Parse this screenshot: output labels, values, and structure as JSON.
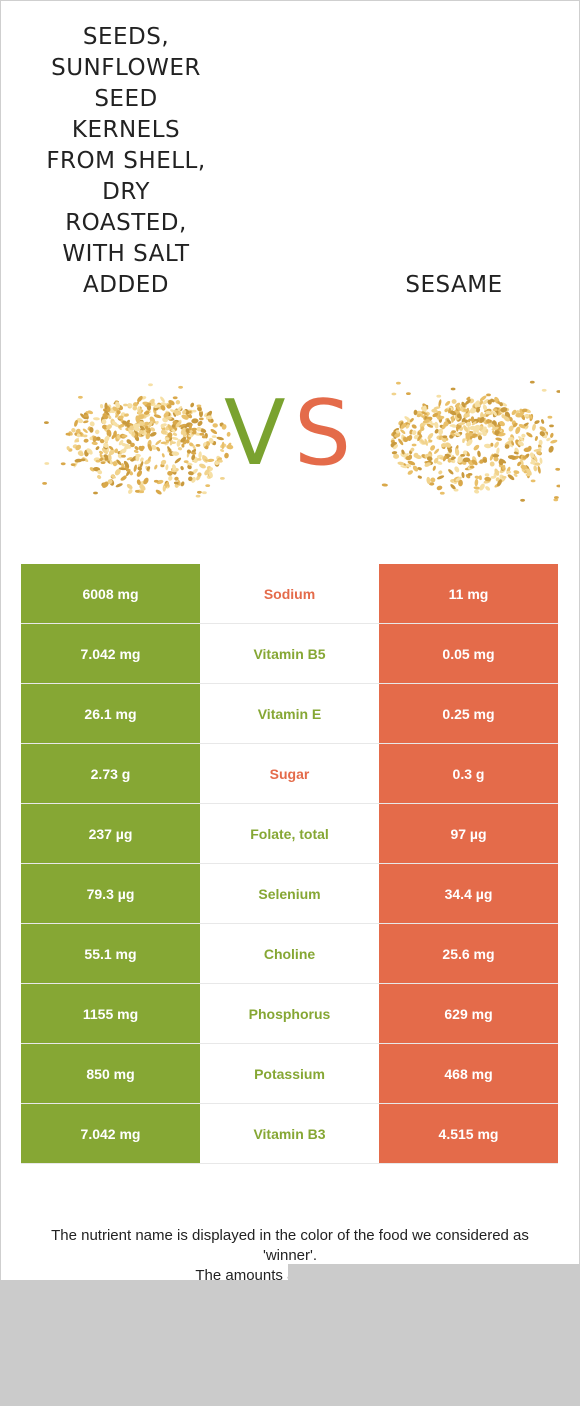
{
  "food_left": {
    "title": "SEEDS, SUNFLOWER SEED KERNELS FROM SHELL, DRY ROASTED, WITH SALT ADDED",
    "image": "sesame-seed-pile-image"
  },
  "food_right": {
    "title": "SESAME",
    "image": "sesame-seed-pile-image"
  },
  "vs": {
    "v": "V",
    "s": "S"
  },
  "colors": {
    "left": "#86a734",
    "right": "#e46b4a",
    "overlay": "#cbcbcb"
  },
  "rows": [
    {
      "nutrient": "Sodium",
      "left": "6008 mg",
      "right": "11 mg",
      "winner": "right"
    },
    {
      "nutrient": "Vitamin B5",
      "left": "7.042 mg",
      "right": "0.05 mg",
      "winner": "left"
    },
    {
      "nutrient": "Vitamin E",
      "left": "26.1 mg",
      "right": "0.25 mg",
      "winner": "left"
    },
    {
      "nutrient": "Sugar",
      "left": "2.73 g",
      "right": "0.3 g",
      "winner": "right"
    },
    {
      "nutrient": "Folate, total",
      "left": "237 µg",
      "right": "97 µg",
      "winner": "left"
    },
    {
      "nutrient": "Selenium",
      "left": "79.3 µg",
      "right": "34.4 µg",
      "winner": "left"
    },
    {
      "nutrient": "Choline",
      "left": "55.1 mg",
      "right": "25.6 mg",
      "winner": "left"
    },
    {
      "nutrient": "Phosphorus",
      "left": "1155 mg",
      "right": "629 mg",
      "winner": "left"
    },
    {
      "nutrient": "Potassium",
      "left": "850 mg",
      "right": "468 mg",
      "winner": "left"
    },
    {
      "nutrient": "Vitamin B3",
      "left": "7.042 mg",
      "right": "4.515 mg",
      "winner": "left"
    }
  ],
  "footnote": {
    "line1": "The nutrient name is displayed in the color of the food we considered as 'winner'.",
    "line2": "The amounts are specified p"
  }
}
